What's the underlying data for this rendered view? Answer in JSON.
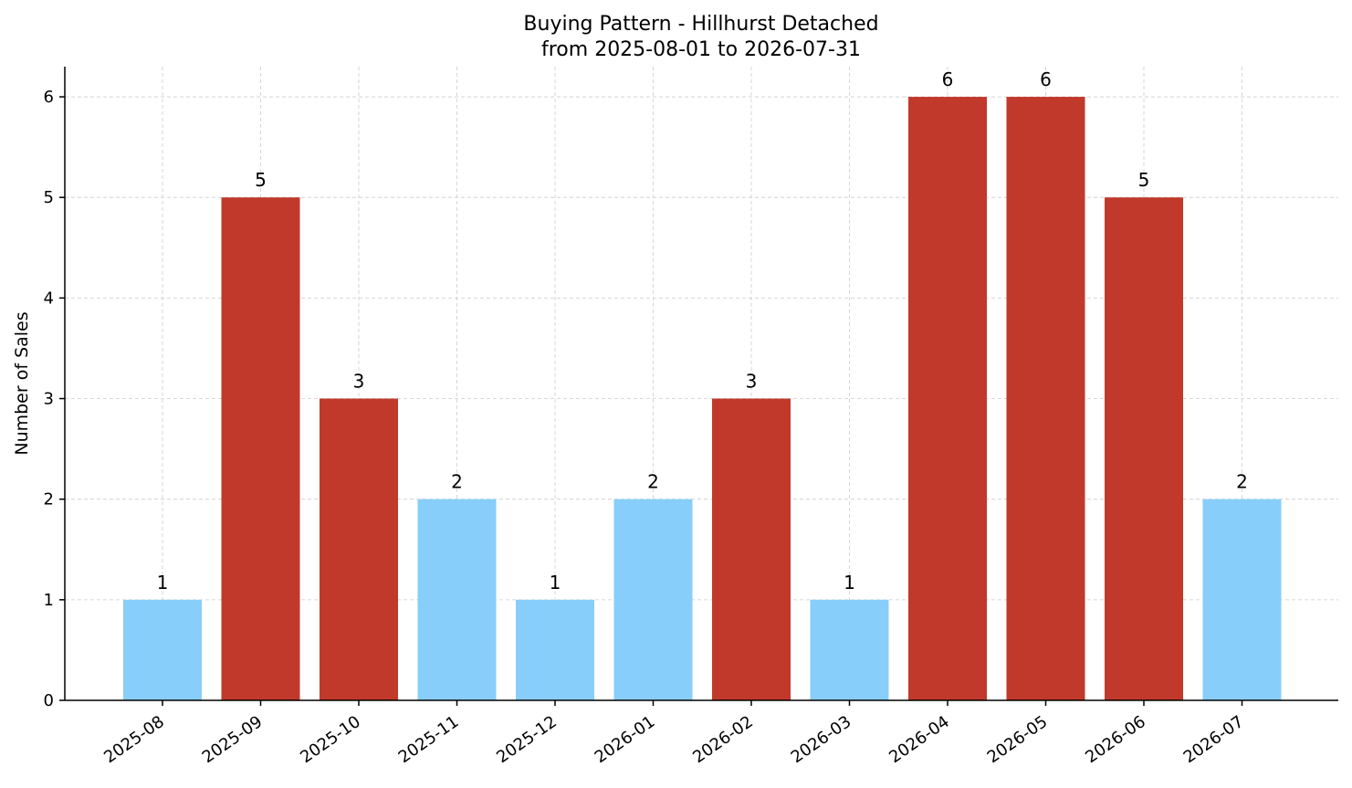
{
  "chart_data": {
    "type": "bar",
    "title": "Buying Pattern - Hillhurst Detached",
    "subtitle": "from 2025-08-01 to 2026-07-31",
    "xlabel": "",
    "ylabel": "Number of Sales",
    "categories": [
      "2025-08",
      "2025-09",
      "2025-10",
      "2025-11",
      "2025-12",
      "2026-01",
      "2026-02",
      "2026-03",
      "2026-04",
      "2026-05",
      "2026-06",
      "2026-07"
    ],
    "values": [
      1,
      5,
      3,
      2,
      1,
      2,
      3,
      1,
      6,
      6,
      5,
      2
    ],
    "yticks": [
      0,
      1,
      2,
      3,
      4,
      5,
      6
    ],
    "ylim": [
      0,
      6.3
    ],
    "grid": true,
    "colors": {
      "high": "#c0392b",
      "low": "#87cefa"
    },
    "high_threshold": 3
  }
}
